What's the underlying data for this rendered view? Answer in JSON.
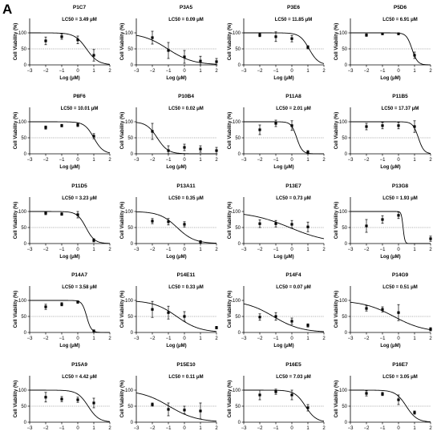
{
  "figure": {
    "panel_letter": "A"
  },
  "chart_data": [
    {
      "type": "scatter",
      "title": "P1C7",
      "annotation": "LC50 = 3.49 μM",
      "ic50": 3.49,
      "hill": 1.2,
      "top": 100,
      "bottom": 0,
      "x": [
        -2,
        -1,
        0,
        1
      ],
      "y": [
        75,
        88,
        78,
        30
      ],
      "err": [
        12,
        8,
        12,
        18
      ],
      "xlabel": "Log (μM)",
      "ylabel": "Cell Viability (%)",
      "xlim": [
        -3,
        2
      ],
      "ylim": [
        0,
        150
      ],
      "reference_line": 50
    },
    {
      "type": "scatter",
      "title": "P3A5",
      "annotation": "LC50 = 0.09 μM",
      "ic50": 0.09,
      "hill": 0.55,
      "top": 100,
      "bottom": 0,
      "x": [
        -2,
        -1,
        0,
        1,
        2
      ],
      "y": [
        85,
        45,
        25,
        12,
        10
      ],
      "err": [
        20,
        25,
        20,
        15,
        10
      ],
      "xlabel": "Log (μM)",
      "ylabel": "Cell Viability (%)",
      "xlim": [
        -3,
        2
      ],
      "ylim": [
        0,
        150
      ],
      "reference_line": 50
    },
    {
      "type": "scatter",
      "title": "P3E6",
      "annotation": "LC50 = 11.85 μM",
      "ic50": 11.85,
      "hill": 1.5,
      "top": 100,
      "bottom": 0,
      "x": [
        -2,
        -1,
        0,
        1
      ],
      "y": [
        93,
        88,
        82,
        55
      ],
      "err": [
        5,
        15,
        10,
        5
      ],
      "xlabel": "Log (μM)",
      "ylabel": "Cell Viability (%)",
      "xlim": [
        -3,
        2
      ],
      "ylim": [
        0,
        150
      ],
      "reference_line": 50
    },
    {
      "type": "scatter",
      "title": "P5D6",
      "annotation": "LC50 = 6.91 μM",
      "ic50": 6.91,
      "hill": 2.5,
      "top": 100,
      "bottom": 0,
      "x": [
        -2,
        -1,
        0,
        1
      ],
      "y": [
        93,
        97,
        97,
        30
      ],
      "err": [
        4,
        3,
        3,
        10
      ],
      "xlabel": "Log (μM)",
      "ylabel": "Cell Viability (%)",
      "xlim": [
        -3,
        2
      ],
      "ylim": [
        0,
        150
      ],
      "reference_line": 50
    },
    {
      "type": "scatter",
      "title": "P8F6",
      "annotation": "LC50 = 10.01 μM",
      "ic50": 10.01,
      "hill": 1.5,
      "top": 100,
      "bottom": 0,
      "x": [
        -2,
        -1,
        0,
        1
      ],
      "y": [
        82,
        88,
        90,
        55
      ],
      "err": [
        5,
        4,
        5,
        8
      ],
      "xlabel": "Log (μM)",
      "ylabel": "Cell Viability (%)",
      "xlim": [
        -3,
        2
      ],
      "ylim": [
        0,
        150
      ],
      "reference_line": 50
    },
    {
      "type": "scatter",
      "title": "P10B4",
      "annotation": "LC50 = 0.02 μM",
      "ic50": 0.02,
      "hill": 1.3,
      "top": 100,
      "bottom": 0,
      "x": [
        -2,
        -1,
        0,
        1,
        2
      ],
      "y": [
        70,
        10,
        20,
        15,
        10
      ],
      "err": [
        25,
        15,
        10,
        10,
        10
      ],
      "xlabel": "Log (μM)",
      "ylabel": "Cell Viability (%)",
      "xlim": [
        -3,
        2
      ],
      "ylim": [
        0,
        150
      ],
      "reference_line": 50
    },
    {
      "type": "scatter",
      "title": "P11A8",
      "annotation": "LC50 = 2.01 μM",
      "ic50": 2.01,
      "hill": 2.5,
      "top": 100,
      "bottom": 0,
      "x": [
        -2,
        -1,
        0,
        1
      ],
      "y": [
        75,
        95,
        88,
        5
      ],
      "err": [
        15,
        10,
        15,
        5
      ],
      "xlabel": "Log (μM)",
      "ylabel": "Cell Viability (%)",
      "xlim": [
        -3,
        2
      ],
      "ylim": [
        0,
        150
      ],
      "reference_line": 50
    },
    {
      "type": "scatter",
      "title": "P11B5",
      "annotation": "LC50 = 17.37 μM",
      "ic50": 17.37,
      "hill": 2.5,
      "top": 100,
      "bottom": 0,
      "x": [
        -2,
        -1,
        0,
        1
      ],
      "y": [
        85,
        88,
        88,
        85
      ],
      "err": [
        10,
        10,
        10,
        18
      ],
      "xlabel": "Log (μM)",
      "ylabel": "Cell Viability (%)",
      "xlim": [
        -3,
        2
      ],
      "ylim": [
        0,
        150
      ],
      "reference_line": 50
    },
    {
      "type": "scatter",
      "title": "P11D5",
      "annotation": "LC50 = 3.23 μM",
      "ic50": 3.23,
      "hill": 1.6,
      "top": 100,
      "bottom": 0,
      "x": [
        -2,
        -1,
        0,
        1
      ],
      "y": [
        95,
        92,
        90,
        10
      ],
      "err": [
        5,
        4,
        10,
        5
      ],
      "xlabel": "Log (μM)",
      "ylabel": "Cell Viability (%)",
      "xlim": [
        -3,
        2
      ],
      "ylim": [
        0,
        150
      ],
      "reference_line": 50
    },
    {
      "type": "scatter",
      "title": "P13A11",
      "annotation": "LC50 = 0.35 μM",
      "ic50": 0.35,
      "hill": 0.8,
      "top": 100,
      "bottom": 0,
      "x": [
        -2,
        -1,
        0,
        1
      ],
      "y": [
        70,
        68,
        60,
        5
      ],
      "err": [
        8,
        10,
        8,
        4
      ],
      "xlabel": "Log (μM)",
      "ylabel": "Cell Viability (%)",
      "xlim": [
        -3,
        2
      ],
      "ylim": [
        0,
        150
      ],
      "reference_line": 50
    },
    {
      "type": "scatter",
      "title": "P13E7",
      "annotation": "LC50 = 0.73 μM",
      "ic50": 0.73,
      "hill": 0.35,
      "top": 100,
      "bottom": 0,
      "x": [
        -2,
        -1,
        0,
        1
      ],
      "y": [
        62,
        62,
        60,
        52
      ],
      "err": [
        12,
        10,
        12,
        15
      ],
      "xlabel": "Log (μM)",
      "ylabel": "Cell Viability (%)",
      "xlim": [
        -3,
        2
      ],
      "ylim": [
        0,
        150
      ],
      "reference_line": 50
    },
    {
      "type": "scatter",
      "title": "P13G8",
      "annotation": "LC50 = 1.93 μM",
      "ic50": 1.93,
      "hill": 8,
      "top": 100,
      "bottom": 0,
      "x": [
        -2,
        -1,
        0,
        2
      ],
      "y": [
        55,
        75,
        88,
        15
      ],
      "err": [
        20,
        12,
        10,
        8
      ],
      "xlabel": "Log (μM)",
      "ylabel": "Cell Viability (%)",
      "xlim": [
        -3,
        2
      ],
      "ylim": [
        0,
        150
      ],
      "reference_line": 50
    },
    {
      "type": "scatter",
      "title": "P14A7",
      "annotation": "LC50 = 3.58 μM",
      "ic50": 3.58,
      "hill": 3,
      "top": 100,
      "bottom": 0,
      "x": [
        -2,
        -1,
        0,
        1
      ],
      "y": [
        80,
        88,
        95,
        5
      ],
      "err": [
        8,
        5,
        4,
        3
      ],
      "xlabel": "Log (μM)",
      "ylabel": "Cell Viability (%)",
      "xlim": [
        -3,
        2
      ],
      "ylim": [
        0,
        150
      ],
      "reference_line": 50
    },
    {
      "type": "scatter",
      "title": "P14E11",
      "annotation": "LC50 = 0.33 μM",
      "ic50": 0.33,
      "hill": 0.6,
      "top": 100,
      "bottom": 0,
      "x": [
        -2,
        -1,
        0,
        2
      ],
      "y": [
        72,
        62,
        50,
        15
      ],
      "err": [
        25,
        20,
        15,
        4
      ],
      "xlabel": "Log (μM)",
      "ylabel": "Cell Viability (%)",
      "xlim": [
        -3,
        2
      ],
      "ylim": [
        0,
        150
      ],
      "reference_line": 50
    },
    {
      "type": "scatter",
      "title": "P14F4",
      "annotation": "LC50 = 0.07 μM",
      "ic50": 0.07,
      "hill": 0.5,
      "top": 100,
      "bottom": 0,
      "x": [
        -2,
        -1,
        0,
        1
      ],
      "y": [
        48,
        50,
        35,
        22
      ],
      "err": [
        10,
        12,
        10,
        5
      ],
      "xlabel": "Log (μM)",
      "ylabel": "Cell Viability (%)",
      "xlim": [
        -3,
        2
      ],
      "ylim": [
        0,
        150
      ],
      "reference_line": 50
    },
    {
      "type": "scatter",
      "title": "P14G9",
      "annotation": "LC50 = 0.51 μM",
      "ic50": 0.51,
      "hill": 0.45,
      "top": 100,
      "bottom": 0,
      "x": [
        -2,
        -1,
        0,
        2
      ],
      "y": [
        75,
        72,
        62,
        10
      ],
      "err": [
        8,
        8,
        25,
        5
      ],
      "xlabel": "Log (μM)",
      "ylabel": "Cell Viability (%)",
      "xlim": [
        -3,
        2
      ],
      "ylim": [
        0,
        150
      ],
      "reference_line": 50
    },
    {
      "type": "scatter",
      "title": "P15A9",
      "annotation": "LC50 = 4.42 μM",
      "ic50": 4.42,
      "hill": 1.3,
      "top": 100,
      "bottom": 0,
      "x": [
        -2,
        -1,
        0,
        1
      ],
      "y": [
        78,
        72,
        70,
        60
      ],
      "err": [
        15,
        8,
        8,
        15
      ],
      "xlabel": "Log (μM)",
      "ylabel": "Cell Viability (%)",
      "xlim": [
        -3,
        2
      ],
      "ylim": [
        0,
        150
      ],
      "reference_line": 50
    },
    {
      "type": "scatter",
      "title": "P15E10",
      "annotation": "LC50 = 0.11 μM",
      "ic50": 0.11,
      "hill": 0.5,
      "top": 100,
      "bottom": 0,
      "x": [
        -2,
        -1,
        0,
        1
      ],
      "y": [
        55,
        40,
        38,
        35
      ],
      "err": [
        5,
        20,
        12,
        25
      ],
      "xlabel": "Log (μM)",
      "ylabel": "Cell Viability (%)",
      "xlim": [
        -3,
        2
      ],
      "ylim": [
        0,
        150
      ],
      "reference_line": 50
    },
    {
      "type": "scatter",
      "title": "P16E5",
      "annotation": "LC50 = 7.03 μM",
      "ic50": 7.03,
      "hill": 1.3,
      "top": 100,
      "bottom": 0,
      "x": [
        -2,
        -1,
        0,
        1
      ],
      "y": [
        85,
        95,
        85,
        45
      ],
      "err": [
        15,
        8,
        15,
        10
      ],
      "xlabel": "Log (μM)",
      "ylabel": "Cell Viability (%)",
      "xlim": [
        -3,
        2
      ],
      "ylim": [
        0,
        150
      ],
      "reference_line": 50
    },
    {
      "type": "scatter",
      "title": "P16E7",
      "annotation": "LC50 = 3.05 μM",
      "ic50": 3.05,
      "hill": 1.3,
      "top": 100,
      "bottom": 0,
      "x": [
        -2,
        -1,
        0,
        1
      ],
      "y": [
        90,
        88,
        70,
        30
      ],
      "err": [
        8,
        5,
        15,
        5
      ],
      "xlabel": "Log (μM)",
      "ylabel": "Cell Viability (%)",
      "xlim": [
        -3,
        2
      ],
      "ylim": [
        0,
        150
      ],
      "reference_line": 50
    }
  ]
}
